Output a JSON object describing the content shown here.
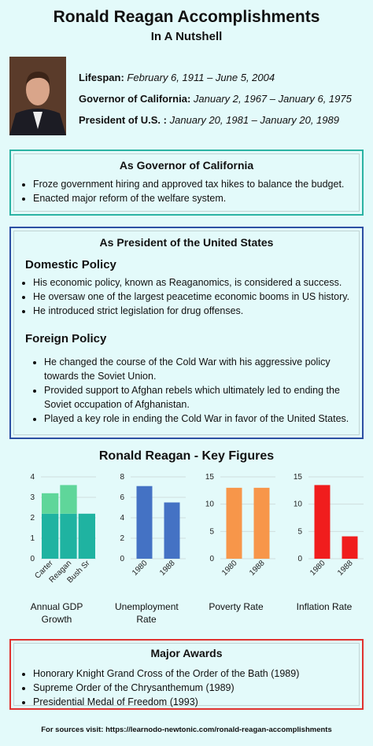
{
  "header": {
    "title": "Ronald Reagan Accomplishments",
    "subtitle": "In A Nutshell"
  },
  "facts": [
    {
      "label": "Lifespan:",
      "value": "February 6, 1911 – June 5, 2004"
    },
    {
      "label": "Governor of California:",
      "value": "January 2, 1967 – January 6, 1975"
    },
    {
      "label": "President of U.S. :",
      "value": "January 20, 1981 – January 20, 1989"
    }
  ],
  "governor": {
    "heading": "As Governor of California",
    "items": [
      "Froze government hiring and approved tax hikes to balance the budget.",
      "Enacted major reform of the welfare system."
    ]
  },
  "president": {
    "heading": "As President of the United States",
    "domestic": {
      "heading": "Domestic Policy",
      "items": [
        "His economic policy, known as Reaganomics, is considered a success.",
        "He oversaw one of the largest peacetime economic booms in US history.",
        "He introduced strict legislation for drug offenses."
      ]
    },
    "foreign": {
      "heading": "Foreign Policy",
      "items": [
        "He changed the course of the Cold War with his aggressive policy towards the Soviet Union.",
        "Provided support to Afghan rebels which ultimately led to ending the Soviet occupation of Afghanistan.",
        "Played a key role in ending the Cold War in favor of the United States."
      ]
    }
  },
  "figures_title": "Ronald Reagan - Key Figures",
  "chart_data": [
    {
      "type": "bar",
      "title": "Annual GDP Growth",
      "categories": [
        "Carter",
        "Reagan",
        "Bush Sr"
      ],
      "series": [
        {
          "color": "#1fb3a1",
          "values": [
            2.2,
            2.2,
            2.2
          ]
        },
        {
          "color": "#5fd69a",
          "values": [
            1.0,
            1.4,
            0
          ]
        }
      ],
      "ylim": [
        0,
        4
      ],
      "yticks": [
        0,
        1,
        2,
        3,
        4
      ],
      "grid": true
    },
    {
      "type": "bar",
      "title": "Unemployment Rate",
      "categories": [
        "1980",
        "1988"
      ],
      "values": [
        7.1,
        5.5
      ],
      "color": "#4472c4",
      "ylim": [
        0,
        8
      ],
      "yticks": [
        0,
        2,
        4,
        6,
        8
      ],
      "grid": true
    },
    {
      "type": "bar",
      "title": "Poverty Rate",
      "categories": [
        "1980",
        "1988"
      ],
      "values": [
        13.0,
        13.0
      ],
      "color": "#f7964a",
      "ylim": [
        0,
        15
      ],
      "yticks": [
        0,
        5,
        10,
        15
      ],
      "grid": true
    },
    {
      "type": "bar",
      "title": "Inflation Rate",
      "categories": [
        "1980",
        "1988"
      ],
      "values": [
        13.5,
        4.1
      ],
      "color": "#f01d1d",
      "ylim": [
        0,
        15
      ],
      "yticks": [
        0,
        5,
        10,
        15
      ],
      "grid": true
    }
  ],
  "awards": {
    "heading": "Major Awards",
    "items": [
      "Honorary Knight Grand Cross of the Order of the Bath (1989)",
      "Supreme Order of the Chrysanthemum (1989)",
      "Presidential Medal of Freedom (1993)"
    ]
  },
  "footer": "For sources visit: https://learnodo-newtonic.com/ronald-reagan-accomplishments"
}
